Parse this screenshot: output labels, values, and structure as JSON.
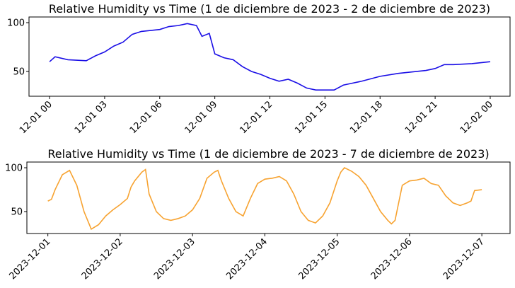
{
  "chart_data": [
    {
      "type": "line",
      "title": "Relative Humidity vs Time (1 de diciembre de 2023 - 2 de diciembre de 2023)",
      "color": "#1a0ee6",
      "x": [
        0,
        0.3,
        1,
        2,
        2.5,
        3,
        3.5,
        4,
        4.5,
        5,
        6,
        6.5,
        7,
        7.5,
        8,
        8.3,
        8.7,
        9,
        9.5,
        10,
        10.5,
        11,
        11.5,
        12,
        12.5,
        13,
        13.5,
        14,
        14.5,
        15,
        15.5,
        16,
        16.5,
        17,
        18,
        19,
        20,
        20.5,
        21,
        21.5,
        22,
        23,
        24
      ],
      "values": [
        60,
        65,
        62,
        61,
        66,
        70,
        76,
        80,
        88,
        91,
        93,
        96,
        97,
        99,
        97,
        86,
        89,
        68,
        64,
        62,
        55,
        50,
        47,
        43,
        40,
        42,
        38,
        33,
        31,
        31,
        31,
        36,
        38,
        40,
        45,
        48,
        50,
        51,
        53,
        57,
        57,
        58,
        60
      ],
      "xlim": [
        -1.12,
        25.08
      ],
      "ylim": [
        24.6,
        105.8
      ],
      "yticks": [
        50,
        100
      ],
      "xticks": [
        {
          "value": 0,
          "label": "12-01 00"
        },
        {
          "value": 3,
          "label": "12-01 03"
        },
        {
          "value": 6,
          "label": "12-01 06"
        },
        {
          "value": 9,
          "label": "12-01 09"
        },
        {
          "value": 12,
          "label": "12-01 12"
        },
        {
          "value": 15,
          "label": "12-01 15"
        },
        {
          "value": 18,
          "label": "12-01 18"
        },
        {
          "value": 21,
          "label": "12-01 21"
        },
        {
          "value": 24,
          "label": "12-02 00"
        }
      ]
    },
    {
      "type": "line",
      "title": "Relative Humidity vs Time (1 de diciembre de 2023 - 7 de diciembre de 2023)",
      "color": "#f7a331",
      "x": [
        0,
        0.05,
        0.1,
        0.2,
        0.3,
        0.4,
        0.5,
        0.55,
        0.6,
        0.7,
        0.8,
        0.9,
        1.0,
        1.1,
        1.15,
        1.2,
        1.3,
        1.35,
        1.4,
        1.5,
        1.6,
        1.7,
        1.8,
        1.9,
        2.0,
        2.1,
        2.2,
        2.3,
        2.35,
        2.4,
        2.5,
        2.6,
        2.7,
        2.8,
        2.9,
        3.0,
        3.1,
        3.2,
        3.3,
        3.4,
        3.5,
        3.6,
        3.7,
        3.8,
        3.9,
        4.0,
        4.05,
        4.1,
        4.2,
        4.3,
        4.4,
        4.5,
        4.6,
        4.7,
        4.75,
        4.8,
        4.85,
        4.9,
        5.0,
        5.1,
        5.2,
        5.3,
        5.4,
        5.5,
        5.6,
        5.7,
        5.8,
        5.85,
        5.9,
        6.0
      ],
      "values": [
        62,
        64,
        75,
        92,
        97,
        80,
        50,
        40,
        30,
        35,
        45,
        52,
        58,
        65,
        78,
        85,
        95,
        98,
        70,
        50,
        42,
        40,
        42,
        45,
        52,
        65,
        88,
        95,
        97,
        85,
        65,
        50,
        45,
        65,
        82,
        87,
        88,
        90,
        85,
        70,
        50,
        40,
        37,
        45,
        60,
        85,
        95,
        100,
        96,
        90,
        80,
        65,
        50,
        40,
        36,
        40,
        60,
        80,
        85,
        86,
        88,
        82,
        80,
        68,
        60,
        57,
        60,
        62,
        74,
        75
      ],
      "xlim": [
        -0.29,
        6.39
      ],
      "ylim": [
        25,
        106.5
      ],
      "yticks": [
        50,
        100
      ],
      "xticks": [
        {
          "value": 0,
          "label": "2023-12-01"
        },
        {
          "value": 1,
          "label": "2023-12-02"
        },
        {
          "value": 2,
          "label": "2023-12-03"
        },
        {
          "value": 3,
          "label": "2023-12-04"
        },
        {
          "value": 4,
          "label": "2023-12-05"
        },
        {
          "value": 5,
          "label": "2023-12-06"
        },
        {
          "value": 6,
          "label": "2023-12-07"
        }
      ]
    }
  ]
}
